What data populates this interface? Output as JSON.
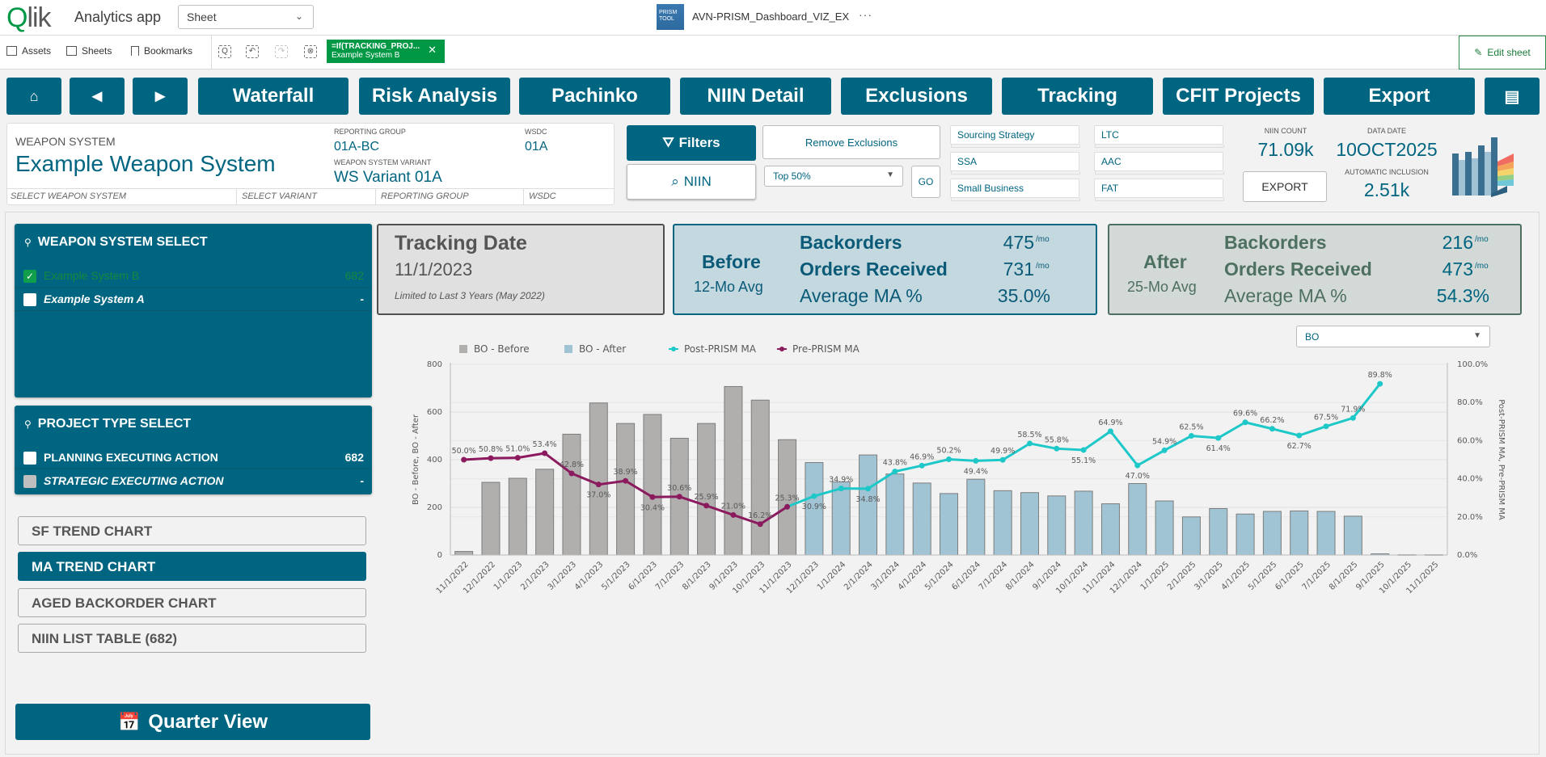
{
  "header": {
    "brand": "Qlik",
    "app_title": "Analytics app",
    "sheet_select": "Sheet",
    "doc_icon_text": "PRISM TOOL",
    "doc_title": "AVN-PRISM_Dashboard_VIZ_EX",
    "more": "···"
  },
  "toolbar": {
    "assets": "Assets",
    "sheets": "Sheets",
    "bookmarks": "Bookmarks",
    "selection_chip": {
      "field": "=If(TRACKING_PROJ...",
      "value": "Example System B"
    },
    "edit_sheet": "Edit sheet"
  },
  "nav": {
    "buttons": [
      "Waterfall",
      "Risk Analysis",
      "Pachinko",
      "NIIN Detail",
      "Exclusions",
      "Tracking",
      "CFIT Projects",
      "Export"
    ]
  },
  "weapon_panel": {
    "ws_label": "WEAPON SYSTEM",
    "ws_value": "Example Weapon System",
    "rg_label": "REPORTING GROUP",
    "rg_value": "01A-BC",
    "wsdc_label": "WSDC",
    "wsdc_value": "01A",
    "variant_label": "WEAPON SYSTEM VARIANT",
    "variant_value": "WS Variant 01A",
    "footer": [
      "SELECT WEAPON SYSTEM",
      "SELECT VARIANT",
      "REPORTING GROUP",
      "WSDC"
    ]
  },
  "controls": {
    "filters": "Filters",
    "niin": "NIIN",
    "remove_exclusions": "Remove Exclusions",
    "top_select": "Top 50%",
    "go": "GO",
    "filter_boxes": [
      "Sourcing Strategy",
      "SSA",
      "Small Business",
      "LTC",
      "AAC",
      "FAT"
    ],
    "export": "EXPORT"
  },
  "kpis": {
    "niin_count_label": "NIIN COUNT",
    "niin_count": "71.09k",
    "data_date_label": "DATA DATE",
    "data_date": "10OCT2025",
    "auto_incl_label": "AUTOMATIC INCLUSION",
    "auto_incl": "2.51k"
  },
  "weapon_select": {
    "title": "WEAPON SYSTEM SELECT",
    "items": [
      {
        "label": "Example System B",
        "count": "682",
        "selected": true
      },
      {
        "label": "Example System A",
        "count": "-",
        "selected": false
      }
    ]
  },
  "project_select": {
    "title": "PROJECT TYPE SELECT",
    "items": [
      {
        "label": "PLANNING EXECUTING ACTION",
        "count": "682"
      },
      {
        "label": "STRATEGIC EXECUTING ACTION",
        "count": "-"
      }
    ]
  },
  "chart_buttons": [
    "SF TREND CHART",
    "MA TREND CHART",
    "AGED BACKORDER CHART",
    "NIIN LIST TABLE (682)"
  ],
  "active_chart_button": "MA TREND CHART",
  "quarter_view": "Quarter View",
  "tracking": {
    "title": "Tracking Date",
    "date": "11/1/2023",
    "note": "Limited to Last 3 Years (May 2022)"
  },
  "before": {
    "title": "Before",
    "sub": "12-Mo Avg",
    "rows": [
      {
        "label": "Backorders",
        "value": "475",
        "unit": "/mo"
      },
      {
        "label": "Orders Received",
        "value": "731",
        "unit": "/mo"
      },
      {
        "label": "Average MA %",
        "value": "35.0%",
        "unit": ""
      }
    ]
  },
  "after": {
    "title": "After",
    "sub": "25-Mo Avg",
    "rows": [
      {
        "label": "Backorders",
        "value": "216",
        "unit": "/mo"
      },
      {
        "label": "Orders Received",
        "value": "473",
        "unit": "/mo"
      },
      {
        "label": "Average MA %",
        "value": "54.3%",
        "unit": ""
      }
    ]
  },
  "measure_select": "BO",
  "colors": {
    "teal": "#006580",
    "bo_before": "#b0afad",
    "bo_after": "#a0c4d4",
    "post_ma": "#1ec8c8",
    "pre_ma": "#8b1a5e",
    "qlik_green": "#009845"
  },
  "chart_data": {
    "type": "bar",
    "title": "",
    "xlabel": "",
    "ylabel": "BO - Before, BO - After",
    "y2label": "Post-PRISM MA, Pre-PRISM MA",
    "ylim": [
      0,
      800
    ],
    "y2lim": [
      0,
      100
    ],
    "yticks": [
      "0",
      "200",
      "400",
      "600",
      "800"
    ],
    "y2ticks": [
      "0.0%",
      "20.0%",
      "40.0%",
      "60.0%",
      "80.0%",
      "100.0%"
    ],
    "grid": true,
    "legend": "top-left",
    "categories": [
      "11/1/2022",
      "12/1/2022",
      "1/1/2023",
      "2/1/2023",
      "3/1/2023",
      "4/1/2023",
      "5/1/2023",
      "6/1/2023",
      "7/1/2023",
      "8/1/2023",
      "9/1/2023",
      "10/1/2023",
      "11/1/2023",
      "12/1/2023",
      "1/1/2024",
      "2/1/2024",
      "3/1/2024",
      "4/1/2024",
      "5/1/2024",
      "6/1/2024",
      "7/1/2024",
      "8/1/2024",
      "9/1/2024",
      "10/1/2024",
      "11/1/2024",
      "12/1/2024",
      "1/1/2025",
      "2/1/2025",
      "3/1/2025",
      "4/1/2025",
      "5/1/2025",
      "6/1/2025",
      "7/1/2025",
      "8/1/2025",
      "9/1/2025",
      "10/1/2025",
      "11/1/2025"
    ],
    "series": [
      {
        "name": "BO - Before",
        "type": "bar",
        "axis": "left",
        "values": [
          15,
          305,
          322,
          360,
          507,
          638,
          552,
          590,
          490,
          552,
          707,
          650,
          484,
          null,
          null,
          null,
          null,
          null,
          null,
          null,
          null,
          null,
          null,
          null,
          null,
          null,
          null,
          null,
          null,
          null,
          null,
          null,
          null,
          null,
          null,
          null,
          null
        ]
      },
      {
        "name": "BO - After",
        "type": "bar",
        "axis": "left",
        "values": [
          null,
          null,
          null,
          null,
          null,
          null,
          null,
          null,
          null,
          null,
          null,
          null,
          null,
          388,
          307,
          420,
          340,
          302,
          258,
          318,
          270,
          262,
          248,
          268,
          215,
          300,
          227,
          160,
          195,
          172,
          183,
          185,
          183,
          163,
          5,
          1,
          1
        ]
      },
      {
        "name": "Post-PRISM MA",
        "type": "line",
        "axis": "right",
        "values": [
          null,
          null,
          null,
          null,
          null,
          null,
          null,
          null,
          null,
          null,
          null,
          null,
          25.3,
          30.9,
          34.9,
          34.8,
          43.8,
          46.9,
          50.2,
          49.4,
          49.9,
          58.5,
          55.8,
          55.1,
          64.9,
          47.0,
          54.9,
          62.5,
          61.4,
          69.6,
          66.2,
          62.7,
          67.5,
          71.9,
          89.8,
          null,
          null
        ]
      },
      {
        "name": "Pre-PRISM MA",
        "type": "line",
        "axis": "right",
        "values": [
          50.0,
          50.8,
          51.0,
          53.4,
          42.8,
          37.0,
          38.9,
          30.4,
          30.6,
          25.9,
          21.0,
          16.2,
          25.3,
          null,
          null,
          null,
          null,
          null,
          null,
          null,
          null,
          null,
          null,
          null,
          null,
          null,
          null,
          null,
          null,
          null,
          null,
          null,
          null,
          null,
          null,
          null,
          null
        ]
      }
    ]
  }
}
